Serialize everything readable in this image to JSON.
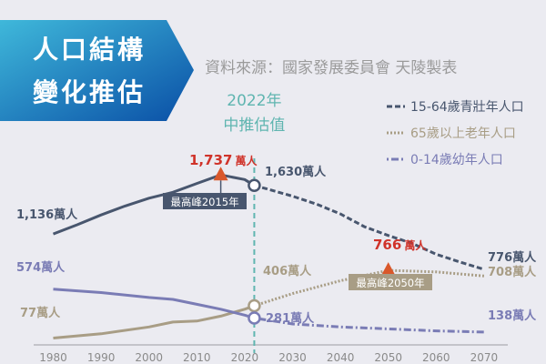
{
  "banner": {
    "line1": "人口結構",
    "line2": "變化推估"
  },
  "source": "資料來源：國家發展委員會 天陵製表",
  "marker": {
    "year": 2022,
    "line1": "2022年",
    "line2": "中推估值"
  },
  "colors": {
    "working": "#48566e",
    "elderly": "#a89d85",
    "children": "#7a7cb5",
    "marker": "#5fb5b0",
    "peak": "#d0332a",
    "arrow": "#d9582b",
    "banner_from": "#3fb8da",
    "banner_to": "#0a4fa6"
  },
  "chart_data": {
    "type": "line",
    "title": "",
    "xlabel": "",
    "ylabel": "",
    "xlim": [
      1980,
      2070
    ],
    "ylim": [
      0,
      1850
    ],
    "x_ticks": [
      1980,
      1990,
      2000,
      2010,
      2020,
      2030,
      2040,
      2050,
      2060,
      2070
    ],
    "legend_position": "top-right",
    "grid": false,
    "unit": "萬人",
    "series": [
      {
        "key": "working",
        "name": "15-64歲青壯年人口",
        "style": "dashed",
        "points": [
          [
            1980,
            1136
          ],
          [
            1985,
            1230
          ],
          [
            1990,
            1330
          ],
          [
            1995,
            1420
          ],
          [
            2000,
            1500
          ],
          [
            2005,
            1560
          ],
          [
            2010,
            1650
          ],
          [
            2015,
            1737
          ],
          [
            2020,
            1690
          ],
          [
            2022,
            1630
          ],
          [
            2025,
            1590
          ],
          [
            2030,
            1520
          ],
          [
            2035,
            1440
          ],
          [
            2040,
            1340
          ],
          [
            2045,
            1210
          ],
          [
            2050,
            1120
          ],
          [
            2055,
            1040
          ],
          [
            2060,
            930
          ],
          [
            2065,
            850
          ],
          [
            2070,
            776
          ]
        ],
        "labels": {
          "start": "1,136萬人",
          "peak": "1,737",
          "peak_unit": "萬人",
          "peak_note": "最高峰2015年",
          "marker": "1,630萬人",
          "end": "776萬人"
        }
      },
      {
        "key": "elderly",
        "name": "65歲以上老年人口",
        "style": "dotted",
        "points": [
          [
            1980,
            77
          ],
          [
            1990,
            120
          ],
          [
            2000,
            190
          ],
          [
            2005,
            240
          ],
          [
            2010,
            250
          ],
          [
            2015,
            300
          ],
          [
            2020,
            370
          ],
          [
            2022,
            406
          ],
          [
            2030,
            530
          ],
          [
            2040,
            660
          ],
          [
            2050,
            766
          ],
          [
            2060,
            750
          ],
          [
            2070,
            708
          ]
        ],
        "labels": {
          "start": "77萬人",
          "peak": "766",
          "peak_unit": "萬人",
          "peak_note": "最高峰2050年",
          "marker": "406萬人",
          "end": "708萬人"
        }
      },
      {
        "key": "children",
        "name": "0-14歲幼年人口",
        "style": "dashdot",
        "points": [
          [
            1980,
            574
          ],
          [
            1990,
            540
          ],
          [
            2000,
            490
          ],
          [
            2005,
            470
          ],
          [
            2010,
            420
          ],
          [
            2015,
            370
          ],
          [
            2020,
            310
          ],
          [
            2022,
            281
          ],
          [
            2030,
            220
          ],
          [
            2040,
            190
          ],
          [
            2050,
            170
          ],
          [
            2060,
            150
          ],
          [
            2070,
            138
          ]
        ],
        "labels": {
          "start": "574萬人",
          "marker": "281萬人",
          "end": "138萬人"
        }
      }
    ]
  }
}
